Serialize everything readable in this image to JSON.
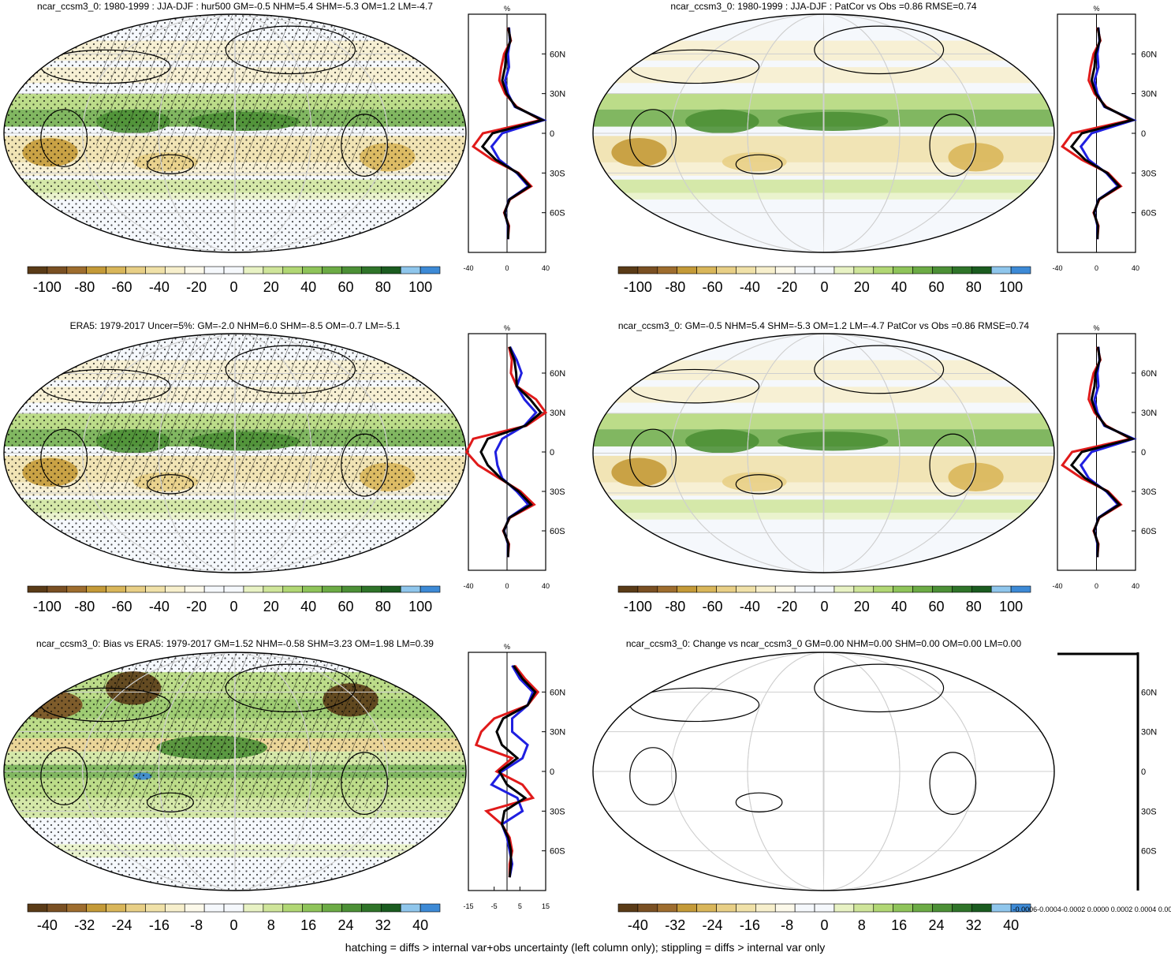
{
  "footer": "hatching = diffs > internal var+obs uncertainty (left column only); stippling = diffs > internal var only",
  "colors": [
    "#5a3b17",
    "#7a5023",
    "#9e6d2e",
    "#c49a38",
    "#d9b65a",
    "#e8cf86",
    "#f0e1a8",
    "#f7efcc",
    "#fcf9ea",
    "#f5f8fc",
    "#f5f8fc",
    "#e8f2c4",
    "#cfe59a",
    "#b1d774",
    "#8fc45a",
    "#6cab45",
    "#4c9036",
    "#2f7429",
    "#1b5c20",
    "#8fc6ec",
    "#3d8ad6"
  ],
  "lat_ticks": [
    "60N",
    "30N",
    "0",
    "30S",
    "60S"
  ],
  "profile_unit": "%",
  "line_colors": {
    "model": "#1f1fe0",
    "obs": "#e01a1a",
    "black": "#000000"
  },
  "panels": [
    {
      "title": "ncar_ccsm3_0: 1980-1999 : JJA-DJF : hur500 GM=-0.5 NHM=5.4 SHM=-5.3 OM=1.2 LM=-4.7",
      "cb_labels": [
        "-100",
        "-80",
        "-60",
        "-40",
        "-20",
        "0",
        "20",
        "40",
        "60",
        "80",
        "100"
      ],
      "prof_ticks": [
        "-40",
        "0",
        "40"
      ],
      "hatch": true,
      "stipple": true,
      "kind": "clim"
    },
    {
      "title": "ncar_ccsm3_0: 1980-1999 : JJA-DJF : PatCor vs Obs =0.86 RMSE=0.74",
      "cb_labels": [
        "-100",
        "-80",
        "-60",
        "-40",
        "-20",
        "0",
        "20",
        "40",
        "60",
        "80",
        "100"
      ],
      "prof_ticks": [
        "-40",
        "0",
        "40"
      ],
      "hatch": false,
      "stipple": false,
      "kind": "clim"
    },
    {
      "title": "ERA5: 1979-2017 Uncer=5%: GM=-2.0 NHM=6.0 SHM=-8.5 OM=-0.7 LM=-5.1",
      "cb_labels": [
        "-100",
        "-80",
        "-60",
        "-40",
        "-20",
        "0",
        "20",
        "40",
        "60",
        "80",
        "100"
      ],
      "prof_ticks": [
        "-40",
        "0",
        "40"
      ],
      "hatch": true,
      "stipple": true,
      "kind": "obs"
    },
    {
      "title": "ncar_ccsm3_0: GM=-0.5 NHM=5.4 SHM=-5.3 OM=1.2 LM=-4.7 PatCor vs Obs =0.86 RMSE=0.74",
      "cb_labels": [
        "-100",
        "-80",
        "-60",
        "-40",
        "-20",
        "0",
        "20",
        "40",
        "60",
        "80",
        "100"
      ],
      "prof_ticks": [
        "-40",
        "0",
        "40"
      ],
      "hatch": false,
      "stipple": false,
      "kind": "clim"
    },
    {
      "title": "ncar_ccsm3_0: Bias vs ERA5: 1979-2017 GM=1.52 NHM=-0.58 SHM=3.23 OM=1.98 LM=0.39",
      "cb_labels": [
        "-40",
        "-32",
        "-24",
        "-16",
        "-8",
        "0",
        "8",
        "16",
        "24",
        "32",
        "40"
      ],
      "prof_ticks": [
        "-15",
        "-5",
        "5",
        "15"
      ],
      "hatch": true,
      "stipple": true,
      "kind": "bias"
    },
    {
      "title": "ncar_ccsm3_0: Change vs ncar_ccsm3_0 GM=0.00 NHM=0.00 SHM=0.00 OM=0.00 LM=0.00",
      "cb_labels": [
        "-40",
        "-32",
        "-24",
        "-16",
        "-8",
        "0",
        "8",
        "16",
        "24",
        "32",
        "40"
      ],
      "prof_ticks": [
        "-0.0006",
        "-0.0004",
        "-0.0002",
        "0",
        "0.0002",
        "0.0004",
        "0.0006"
      ],
      "prof_tick_text": "-0.0006-0.0004-0.0002 0.0000 0.0002 0.0004 0.0006",
      "hatch": false,
      "stipple": false,
      "kind": "zero"
    }
  ],
  "chart_data": {
    "type": "heatmap",
    "variable": "hur500",
    "season": "JJA-DJF",
    "zonal_profiles": {
      "lat": [
        80,
        70,
        60,
        50,
        40,
        30,
        20,
        10,
        0,
        -10,
        -20,
        -30,
        -40,
        -50,
        -60,
        -70,
        -80
      ],
      "clim_model": [
        2,
        3,
        1,
        2,
        -2,
        1,
        8,
        38,
        -5,
        -16,
        -8,
        10,
        22,
        2,
        -2,
        1,
        1
      ],
      "clim_obs": [
        1,
        4,
        -3,
        -6,
        -8,
        -2,
        10,
        35,
        -25,
        -35,
        -15,
        12,
        25,
        3,
        -3,
        2,
        1
      ],
      "obs_model": [
        3,
        10,
        15,
        10,
        18,
        30,
        18,
        -5,
        -12,
        -10,
        -5,
        10,
        22,
        2,
        -3,
        1,
        1
      ],
      "obs_obs": [
        2,
        5,
        4,
        10,
        30,
        40,
        20,
        -35,
        -42,
        -30,
        -8,
        14,
        28,
        3,
        -4,
        2,
        1
      ],
      "bias_model": [
        2,
        5,
        10,
        8,
        2,
        2,
        8,
        6,
        -2,
        -6,
        4,
        6,
        -2,
        0,
        1,
        2,
        1
      ],
      "bias_obs": [
        3,
        7,
        12,
        8,
        -5,
        -10,
        -12,
        2,
        -4,
        6,
        10,
        -8,
        -2,
        1,
        2,
        1,
        1
      ]
    }
  }
}
